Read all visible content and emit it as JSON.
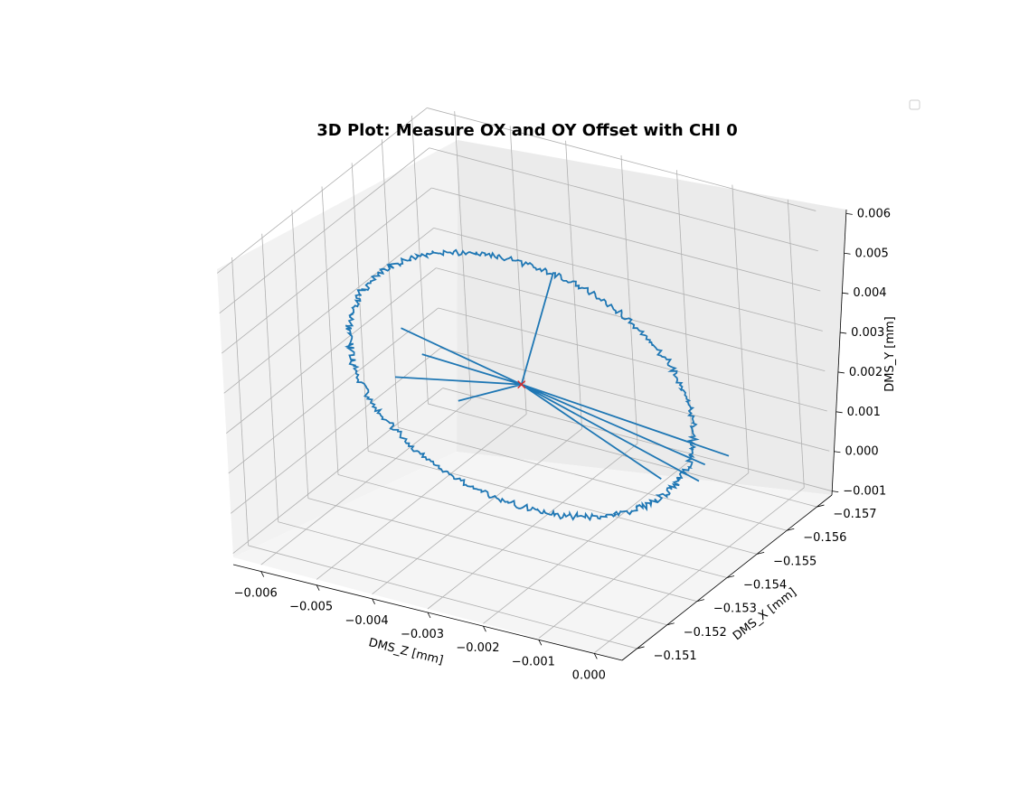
{
  "chart_data": {
    "type": "line",
    "title": "3D Plot: Measure OX and OY Offset with CHI 0",
    "xlabel": "DMS_Z [mm]",
    "ylabel": "DMS_X [mm]",
    "zlabel": "DMS_Y [mm]",
    "grid": true,
    "legend": {
      "placement": "top-right",
      "entries": []
    },
    "colors": {
      "series": "#1f77b4",
      "marker": "#d62728",
      "pane": "#f2f2f2",
      "grid": "#b0b0b0"
    },
    "xticks": [
      "−0.006",
      "−0.005",
      "−0.004",
      "−0.003",
      "−0.002",
      "−0.001",
      "0.000"
    ],
    "yticks": [
      "−0.151",
      "−0.152",
      "−0.153",
      "−0.154",
      "−0.155",
      "−0.156",
      "−0.157"
    ],
    "zticks": [
      "−0.001",
      "0.000",
      "0.001",
      "0.002",
      "0.003",
      "0.004",
      "0.005",
      "0.006"
    ],
    "xlim": [
      -0.0065,
      0.0005
    ],
    "ylim": [
      -0.1505,
      -0.1575
    ],
    "zlim": [
      -0.0011,
      0.0061
    ],
    "series_shape": {
      "circle_center": [
        -0.003,
        -0.1539,
        0.0025
      ],
      "circle_radius": 0.0031,
      "noise": 4e-05,
      "points": 520
    },
    "spikes": [
      [
        -0.0048,
        -0.1533,
        0.0036
      ],
      [
        -0.0045,
        -0.1534,
        0.003
      ],
      [
        -0.001,
        -0.1547,
        0.0004
      ],
      [
        -0.0006,
        -0.1552,
        0.0002
      ],
      [
        -0.0002,
        -0.1555,
        0.0008
      ],
      [
        -0.0049,
        -0.1532,
        0.0024
      ],
      [
        -0.0003,
        -0.1549,
        0.0009
      ],
      [
        -0.004,
        -0.1536,
        0.0019
      ]
    ],
    "marker": {
      "x": -0.003,
      "y": -0.1539,
      "z": 0.0025,
      "symbol": "x"
    }
  }
}
